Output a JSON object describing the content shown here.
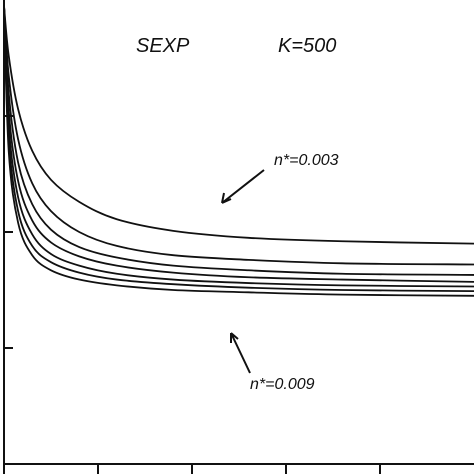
{
  "chart_data": {
    "type": "line",
    "title": "",
    "xlabel": "",
    "ylabel": "",
    "xlim": [
      0,
      5
    ],
    "ylim": [
      0,
      4
    ],
    "x_ticks": [
      0,
      1,
      2,
      3,
      4
    ],
    "y_ticks": [
      0,
      1,
      2,
      3
    ],
    "grid": false,
    "annotations": {
      "model": "SEXP",
      "k": "K=500",
      "top_curve": "n*=0.003",
      "bottom_curve": "n*=0.009"
    },
    "series": [
      {
        "x": [
          0,
          0.05,
          0.15,
          0.3,
          0.5,
          0.8,
          1.2,
          1.8,
          2.6,
          3.6,
          5.0
        ],
        "values": [
          3.95,
          3.52,
          3.06,
          2.7,
          2.45,
          2.26,
          2.11,
          2.01,
          1.95,
          1.92,
          1.9
        ]
      },
      {
        "x": [
          0,
          0.05,
          0.15,
          0.3,
          0.5,
          0.8,
          1.2,
          1.8,
          2.6,
          3.6,
          5.0
        ],
        "values": [
          3.95,
          3.35,
          2.8,
          2.42,
          2.18,
          2.0,
          1.88,
          1.8,
          1.76,
          1.73,
          1.72
        ]
      },
      {
        "x": [
          0,
          0.05,
          0.15,
          0.3,
          0.5,
          0.8,
          1.2,
          1.8,
          2.6,
          3.6,
          5.0
        ],
        "values": [
          3.95,
          3.2,
          2.6,
          2.24,
          2.02,
          1.87,
          1.78,
          1.71,
          1.67,
          1.64,
          1.63
        ]
      },
      {
        "x": [
          0,
          0.05,
          0.15,
          0.3,
          0.5,
          0.8,
          1.2,
          1.8,
          2.6,
          3.6,
          5.0
        ],
        "values": [
          3.95,
          3.05,
          2.44,
          2.1,
          1.91,
          1.79,
          1.71,
          1.65,
          1.61,
          1.59,
          1.57
        ]
      },
      {
        "x": [
          0,
          0.05,
          0.15,
          0.3,
          0.5,
          0.8,
          1.2,
          1.8,
          2.6,
          3.6,
          5.0
        ],
        "values": [
          3.95,
          2.92,
          2.3,
          1.98,
          1.81,
          1.71,
          1.64,
          1.59,
          1.56,
          1.54,
          1.53
        ]
      },
      {
        "x": [
          0,
          0.05,
          0.15,
          0.3,
          0.5,
          0.8,
          1.2,
          1.8,
          2.6,
          3.6,
          5.0
        ],
        "values": [
          3.95,
          2.8,
          2.18,
          1.88,
          1.74,
          1.65,
          1.59,
          1.55,
          1.52,
          1.5,
          1.49
        ]
      },
      {
        "x": [
          0,
          0.05,
          0.15,
          0.3,
          0.5,
          0.8,
          1.2,
          1.8,
          2.6,
          3.6,
          5.0
        ],
        "values": [
          3.95,
          2.7,
          2.08,
          1.8,
          1.67,
          1.59,
          1.54,
          1.5,
          1.48,
          1.46,
          1.45
        ]
      }
    ]
  }
}
